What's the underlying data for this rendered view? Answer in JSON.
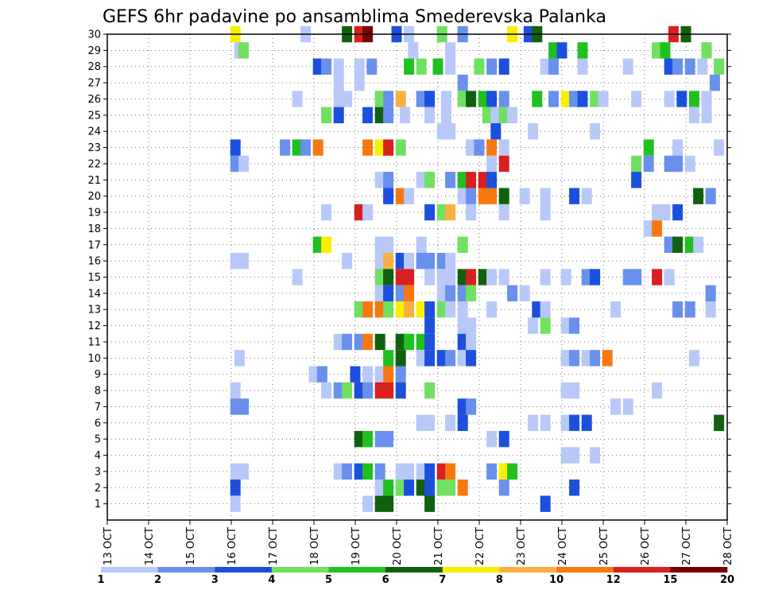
{
  "chart_data": {
    "type": "heatmap",
    "title": "GEFS 6hr padavine po ansamblima Smederevska Palanka",
    "xlabel": "",
    "ylabel": "",
    "x_ticks": [
      "13 OCT",
      "14 OCT",
      "15 OCT",
      "16 OCT",
      "17 OCT",
      "18 OCT",
      "19 OCT",
      "20 OCT",
      "21 OCT",
      "22 OCT",
      "23 OCT",
      "24 OCT",
      "25 OCT",
      "26 OCT",
      "27 OCT",
      "28 OCT"
    ],
    "y_ticks": [
      "1",
      "2",
      "3",
      "4",
      "5",
      "6",
      "7",
      "8",
      "9",
      "10",
      "11",
      "12",
      "13",
      "14",
      "15",
      "16",
      "17",
      "18",
      "19",
      "20",
      "21",
      "22",
      "23",
      "24",
      "25",
      "26",
      "27",
      "28",
      "29",
      "30"
    ],
    "x_range_days": [
      13,
      28
    ],
    "y_range": [
      0,
      30
    ],
    "grid": true,
    "colorbar": {
      "boundaries": [
        "1",
        "2",
        "3",
        "4",
        "5",
        "6",
        "7",
        "8",
        "10",
        "12",
        "15",
        "20"
      ],
      "colors": [
        "#b8c8f8",
        "#6890ec",
        "#1c50dc",
        "#70e060",
        "#20c020",
        "#106010",
        "#f8f000",
        "#f8b040",
        "#f87810",
        "#d82020",
        "#780000"
      ]
    },
    "cells": [
      [
        16.1,
        30,
        6
      ],
      [
        17.8,
        30,
        0
      ],
      [
        18.8,
        30,
        5
      ],
      [
        19.1,
        30,
        9
      ],
      [
        19.3,
        30,
        10
      ],
      [
        20.0,
        30,
        2
      ],
      [
        20.3,
        30,
        0
      ],
      [
        21.1,
        30,
        3
      ],
      [
        21.6,
        30,
        1
      ],
      [
        22.8,
        30,
        6
      ],
      [
        23.2,
        30,
        2
      ],
      [
        23.4,
        30,
        5
      ],
      [
        26.7,
        30,
        9
      ],
      [
        27.0,
        30,
        5
      ],
      [
        16.2,
        29,
        0
      ],
      [
        16.3,
        29,
        3
      ],
      [
        20.4,
        29,
        0
      ],
      [
        21.3,
        29,
        0
      ],
      [
        23.8,
        29,
        4
      ],
      [
        24.0,
        29,
        2
      ],
      [
        24.5,
        29,
        4
      ],
      [
        26.3,
        29,
        3
      ],
      [
        26.5,
        29,
        4
      ],
      [
        27.5,
        29,
        3
      ],
      [
        18.1,
        28,
        2
      ],
      [
        18.3,
        28,
        1
      ],
      [
        18.6,
        28,
        0
      ],
      [
        19.1,
        28,
        0
      ],
      [
        19.4,
        28,
        1
      ],
      [
        20.3,
        28,
        4
      ],
      [
        20.6,
        28,
        3
      ],
      [
        21.0,
        28,
        4
      ],
      [
        21.3,
        28,
        0
      ],
      [
        22.0,
        28,
        3
      ],
      [
        22.3,
        28,
        1
      ],
      [
        22.6,
        28,
        2
      ],
      [
        23.6,
        28,
        0
      ],
      [
        23.8,
        28,
        1
      ],
      [
        24.5,
        28,
        0
      ],
      [
        25.6,
        28,
        0
      ],
      [
        26.6,
        28,
        2
      ],
      [
        26.8,
        28,
        1
      ],
      [
        27.1,
        28,
        1
      ],
      [
        27.4,
        28,
        0
      ],
      [
        27.8,
        28,
        3
      ],
      [
        18.6,
        27,
        0
      ],
      [
        19.1,
        27,
        0
      ],
      [
        21.6,
        27,
        1
      ],
      [
        27.7,
        27,
        1
      ],
      [
        17.6,
        26,
        0
      ],
      [
        18.6,
        26,
        0
      ],
      [
        18.8,
        26,
        0
      ],
      [
        19.6,
        26,
        3
      ],
      [
        19.8,
        26,
        1
      ],
      [
        20.1,
        26,
        7
      ],
      [
        20.6,
        26,
        1
      ],
      [
        20.8,
        26,
        2
      ],
      [
        21.2,
        26,
        0
      ],
      [
        21.6,
        26,
        3
      ],
      [
        21.8,
        26,
        5
      ],
      [
        22.1,
        26,
        4
      ],
      [
        22.3,
        26,
        2
      ],
      [
        22.6,
        26,
        1
      ],
      [
        23.4,
        26,
        4
      ],
      [
        23.8,
        26,
        1
      ],
      [
        24.1,
        26,
        6
      ],
      [
        24.3,
        26,
        1
      ],
      [
        24.5,
        26,
        2
      ],
      [
        24.8,
        26,
        3
      ],
      [
        25.0,
        26,
        0
      ],
      [
        25.8,
        26,
        0
      ],
      [
        26.6,
        26,
        0
      ],
      [
        26.9,
        26,
        2
      ],
      [
        27.2,
        26,
        4
      ],
      [
        27.5,
        26,
        0
      ],
      [
        18.3,
        25,
        3
      ],
      [
        18.6,
        25,
        2
      ],
      [
        19.3,
        25,
        2
      ],
      [
        19.6,
        25,
        5
      ],
      [
        19.8,
        25,
        1
      ],
      [
        20.2,
        25,
        0
      ],
      [
        20.8,
        25,
        0
      ],
      [
        21.2,
        25,
        0
      ],
      [
        22.2,
        25,
        3
      ],
      [
        22.4,
        25,
        0
      ],
      [
        22.6,
        25,
        3
      ],
      [
        22.8,
        25,
        0
      ],
      [
        27.2,
        25,
        0
      ],
      [
        27.5,
        25,
        0
      ],
      [
        21.1,
        24,
        0
      ],
      [
        21.3,
        24,
        0
      ],
      [
        22.4,
        24,
        2
      ],
      [
        23.3,
        24,
        0
      ],
      [
        24.8,
        24,
        0
      ],
      [
        16.1,
        23,
        2
      ],
      [
        17.3,
        23,
        1
      ],
      [
        17.6,
        23,
        4
      ],
      [
        17.8,
        23,
        1
      ],
      [
        18.1,
        23,
        8
      ],
      [
        19.3,
        23,
        8
      ],
      [
        19.6,
        23,
        6
      ],
      [
        19.8,
        23,
        9
      ],
      [
        20.1,
        23,
        3
      ],
      [
        21.8,
        23,
        0
      ],
      [
        22.0,
        23,
        1
      ],
      [
        22.3,
        23,
        8
      ],
      [
        22.6,
        23,
        0
      ],
      [
        26.1,
        23,
        4
      ],
      [
        26.8,
        23,
        0
      ],
      [
        27.8,
        23,
        0
      ],
      [
        16.1,
        22,
        1
      ],
      [
        16.3,
        22,
        0
      ],
      [
        22.3,
        22,
        0
      ],
      [
        22.6,
        22,
        9
      ],
      [
        25.8,
        22,
        3
      ],
      [
        26.1,
        22,
        1
      ],
      [
        26.6,
        22,
        1
      ],
      [
        26.8,
        22,
        1
      ],
      [
        27.1,
        22,
        0
      ],
      [
        19.6,
        21,
        0
      ],
      [
        19.8,
        21,
        1
      ],
      [
        20.6,
        21,
        0
      ],
      [
        20.8,
        21,
        3
      ],
      [
        21.3,
        21,
        1
      ],
      [
        21.6,
        21,
        4
      ],
      [
        21.8,
        21,
        9
      ],
      [
        22.1,
        21,
        9
      ],
      [
        22.3,
        21,
        2
      ],
      [
        25.8,
        21,
        2
      ],
      [
        19.8,
        20,
        2
      ],
      [
        20.1,
        20,
        8
      ],
      [
        20.3,
        20,
        0
      ],
      [
        21.6,
        20,
        0
      ],
      [
        21.8,
        20,
        1
      ],
      [
        22.1,
        20,
        8
      ],
      [
        22.3,
        20,
        8
      ],
      [
        22.6,
        20,
        5
      ],
      [
        23.1,
        20,
        0
      ],
      [
        23.6,
        20,
        0
      ],
      [
        24.3,
        20,
        2
      ],
      [
        24.6,
        20,
        0
      ],
      [
        27.3,
        20,
        5
      ],
      [
        27.6,
        20,
        1
      ],
      [
        18.3,
        19,
        0
      ],
      [
        19.1,
        19,
        9
      ],
      [
        19.3,
        19,
        0
      ],
      [
        20.8,
        19,
        2
      ],
      [
        21.1,
        19,
        3
      ],
      [
        21.3,
        19,
        7
      ],
      [
        21.8,
        19,
        0
      ],
      [
        22.6,
        19,
        0
      ],
      [
        23.6,
        19,
        0
      ],
      [
        26.3,
        19,
        0
      ],
      [
        26.5,
        19,
        0
      ],
      [
        26.8,
        19,
        2
      ],
      [
        26.1,
        18,
        0
      ],
      [
        26.3,
        18,
        8
      ],
      [
        18.1,
        17,
        4
      ],
      [
        18.3,
        17,
        6
      ],
      [
        19.6,
        17,
        0
      ],
      [
        19.8,
        17,
        0
      ],
      [
        20.6,
        17,
        0
      ],
      [
        21.6,
        17,
        3
      ],
      [
        26.6,
        17,
        1
      ],
      [
        26.8,
        17,
        5
      ],
      [
        27.1,
        17,
        4
      ],
      [
        27.3,
        17,
        0
      ],
      [
        16.1,
        16,
        0
      ],
      [
        16.3,
        16,
        0
      ],
      [
        18.8,
        16,
        0
      ],
      [
        19.6,
        16,
        0
      ],
      [
        19.8,
        16,
        7
      ],
      [
        20.1,
        16,
        2
      ],
      [
        20.3,
        16,
        0
      ],
      [
        20.6,
        16,
        1
      ],
      [
        20.8,
        16,
        1
      ],
      [
        21.1,
        16,
        1
      ],
      [
        21.3,
        16,
        0
      ],
      [
        17.6,
        15,
        0
      ],
      [
        19.6,
        15,
        3
      ],
      [
        19.8,
        15,
        5
      ],
      [
        20.1,
        15,
        9
      ],
      [
        20.3,
        15,
        9
      ],
      [
        20.8,
        15,
        0
      ],
      [
        21.1,
        15,
        0
      ],
      [
        21.3,
        15,
        0
      ],
      [
        21.6,
        15,
        5
      ],
      [
        21.8,
        15,
        9
      ],
      [
        22.1,
        15,
        5
      ],
      [
        22.3,
        15,
        0
      ],
      [
        22.6,
        15,
        0
      ],
      [
        23.6,
        15,
        0
      ],
      [
        24.1,
        15,
        0
      ],
      [
        24.6,
        15,
        1
      ],
      [
        24.8,
        15,
        2
      ],
      [
        25.6,
        15,
        1
      ],
      [
        25.8,
        15,
        1
      ],
      [
        26.3,
        15,
        9
      ],
      [
        26.6,
        15,
        0
      ],
      [
        19.6,
        14,
        0
      ],
      [
        19.8,
        14,
        2
      ],
      [
        20.1,
        14,
        1
      ],
      [
        20.3,
        14,
        8
      ],
      [
        21.1,
        14,
        0
      ],
      [
        21.3,
        14,
        1
      ],
      [
        21.6,
        14,
        1
      ],
      [
        21.8,
        14,
        3
      ],
      [
        22.8,
        14,
        1
      ],
      [
        23.1,
        14,
        0
      ],
      [
        27.6,
        14,
        1
      ],
      [
        19.1,
        13,
        3
      ],
      [
        19.3,
        13,
        8
      ],
      [
        19.6,
        13,
        8
      ],
      [
        19.8,
        13,
        3
      ],
      [
        20.1,
        13,
        6
      ],
      [
        20.3,
        13,
        7
      ],
      [
        20.6,
        13,
        6
      ],
      [
        20.8,
        13,
        2
      ],
      [
        21.1,
        13,
        3
      ],
      [
        21.3,
        13,
        0
      ],
      [
        21.6,
        13,
        0
      ],
      [
        22.3,
        13,
        0
      ],
      [
        23.4,
        13,
        2
      ],
      [
        23.6,
        13,
        0
      ],
      [
        25.3,
        13,
        0
      ],
      [
        26.8,
        13,
        1
      ],
      [
        27.1,
        13,
        1
      ],
      [
        27.6,
        13,
        0
      ],
      [
        20.8,
        12,
        2
      ],
      [
        21.6,
        12,
        0
      ],
      [
        21.8,
        12,
        0
      ],
      [
        23.3,
        12,
        0
      ],
      [
        23.6,
        12,
        3
      ],
      [
        24.1,
        12,
        0
      ],
      [
        24.3,
        12,
        1
      ],
      [
        18.6,
        11,
        0
      ],
      [
        18.8,
        11,
        1
      ],
      [
        19.1,
        11,
        1
      ],
      [
        19.3,
        11,
        8
      ],
      [
        19.6,
        11,
        5
      ],
      [
        20.1,
        11,
        5
      ],
      [
        20.3,
        11,
        4
      ],
      [
        20.6,
        11,
        4
      ],
      [
        20.8,
        11,
        2
      ],
      [
        21.6,
        11,
        2
      ],
      [
        21.8,
        11,
        0
      ],
      [
        19.8,
        10,
        4
      ],
      [
        20.1,
        10,
        5
      ],
      [
        20.6,
        10,
        0
      ],
      [
        20.8,
        10,
        2
      ],
      [
        21.1,
        10,
        2
      ],
      [
        21.3,
        10,
        1
      ],
      [
        21.6,
        10,
        0
      ],
      [
        21.8,
        10,
        2
      ],
      [
        24.1,
        10,
        0
      ],
      [
        24.3,
        10,
        1
      ],
      [
        24.6,
        10,
        0
      ],
      [
        24.8,
        10,
        1
      ],
      [
        25.1,
        10,
        8
      ],
      [
        27.2,
        10,
        0
      ],
      [
        16.2,
        10,
        0
      ],
      [
        18.0,
        9,
        0
      ],
      [
        18.2,
        9,
        1
      ],
      [
        19.0,
        9,
        2
      ],
      [
        19.3,
        9,
        0
      ],
      [
        19.6,
        9,
        0
      ],
      [
        19.8,
        9,
        8
      ],
      [
        20.1,
        9,
        1
      ],
      [
        16.1,
        8,
        0
      ],
      [
        18.3,
        8,
        0
      ],
      [
        18.6,
        8,
        1
      ],
      [
        18.8,
        8,
        3
      ],
      [
        19.1,
        8,
        2
      ],
      [
        19.3,
        8,
        1
      ],
      [
        19.6,
        8,
        9
      ],
      [
        19.8,
        8,
        9
      ],
      [
        20.1,
        8,
        2
      ],
      [
        20.8,
        8,
        3
      ],
      [
        24.1,
        8,
        0
      ],
      [
        24.3,
        8,
        0
      ],
      [
        26.3,
        8,
        0
      ],
      [
        16.1,
        7,
        1
      ],
      [
        16.3,
        7,
        1
      ],
      [
        21.6,
        7,
        2
      ],
      [
        21.8,
        7,
        1
      ],
      [
        25.3,
        7,
        0
      ],
      [
        25.6,
        7,
        0
      ],
      [
        20.6,
        6,
        0
      ],
      [
        20.8,
        6,
        0
      ],
      [
        21.3,
        6,
        0
      ],
      [
        21.6,
        6,
        2
      ],
      [
        23.3,
        6,
        0
      ],
      [
        23.6,
        6,
        0
      ],
      [
        24.1,
        6,
        0
      ],
      [
        24.3,
        6,
        2
      ],
      [
        24.6,
        6,
        2
      ],
      [
        27.8,
        6,
        5
      ],
      [
        19.1,
        5,
        5
      ],
      [
        19.3,
        5,
        4
      ],
      [
        19.6,
        5,
        1
      ],
      [
        19.8,
        5,
        1
      ],
      [
        22.3,
        5,
        0
      ],
      [
        22.6,
        5,
        2
      ],
      [
        24.1,
        4,
        0
      ],
      [
        24.3,
        4,
        0
      ],
      [
        24.8,
        4,
        0
      ],
      [
        16.1,
        3,
        0
      ],
      [
        16.3,
        3,
        0
      ],
      [
        18.6,
        3,
        0
      ],
      [
        18.8,
        3,
        1
      ],
      [
        19.1,
        3,
        2
      ],
      [
        19.3,
        3,
        4
      ],
      [
        19.6,
        3,
        1
      ],
      [
        20.1,
        3,
        0
      ],
      [
        20.3,
        3,
        0
      ],
      [
        20.6,
        3,
        0
      ],
      [
        20.8,
        3,
        2
      ],
      [
        21.1,
        3,
        9
      ],
      [
        21.3,
        3,
        8
      ],
      [
        22.3,
        3,
        1
      ],
      [
        22.6,
        3,
        6
      ],
      [
        22.8,
        3,
        4
      ],
      [
        16.1,
        2,
        2
      ],
      [
        19.6,
        2,
        0
      ],
      [
        19.8,
        2,
        4
      ],
      [
        20.1,
        2,
        3
      ],
      [
        20.3,
        2,
        2
      ],
      [
        20.6,
        2,
        5
      ],
      [
        20.8,
        2,
        2
      ],
      [
        21.1,
        2,
        3
      ],
      [
        21.3,
        2,
        3
      ],
      [
        21.6,
        2,
        8
      ],
      [
        22.6,
        2,
        1
      ],
      [
        24.3,
        2,
        2
      ],
      [
        16.1,
        1,
        0
      ],
      [
        19.3,
        1,
        0
      ],
      [
        19.6,
        1,
        5
      ],
      [
        19.8,
        1,
        5
      ],
      [
        20.8,
        1,
        5
      ],
      [
        23.6,
        1,
        2
      ]
    ]
  }
}
